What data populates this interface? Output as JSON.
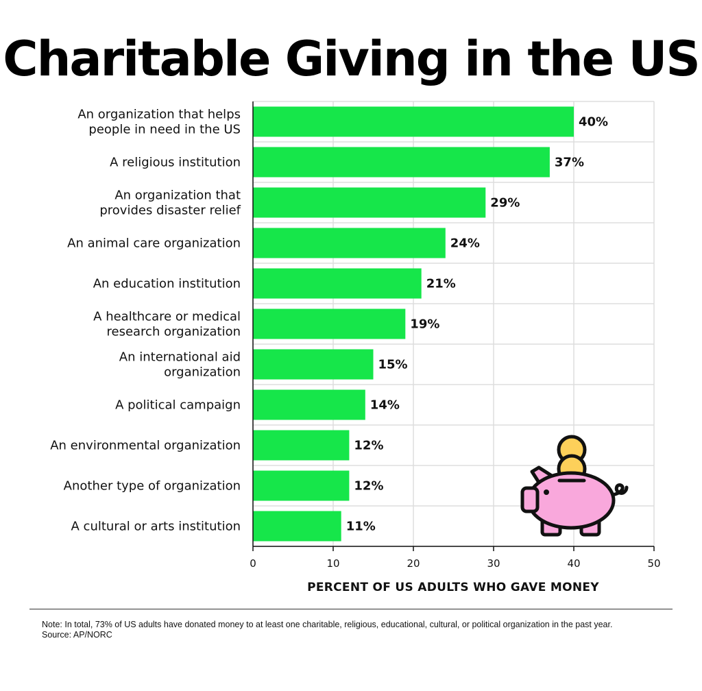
{
  "chart_data": {
    "type": "bar",
    "orientation": "horizontal",
    "title": "Charitable Giving in the US",
    "xlabel": "PERCENT OF US ADULTS WHO GAVE MONEY",
    "ylabel": "",
    "xlim": [
      0,
      50
    ],
    "xticks": [
      "0",
      "10",
      "20",
      "30",
      "40",
      "50"
    ],
    "grid": true,
    "bar_color": "#16e64a",
    "categories": [
      [
        "An organization that helps",
        "people in need in the US"
      ],
      [
        "A religious institution"
      ],
      [
        "An organization that",
        "provides disaster relief"
      ],
      [
        "An animal care organization"
      ],
      [
        "An education institution"
      ],
      [
        "A healthcare or medical",
        "research organization"
      ],
      [
        "An international aid",
        "organization"
      ],
      [
        "A political campaign"
      ],
      [
        "An environmental organization"
      ],
      [
        "Another type of organization"
      ],
      [
        "A cultural or arts institution"
      ]
    ],
    "values": [
      40,
      37,
      29,
      24,
      21,
      19,
      15,
      14,
      12,
      12,
      11
    ],
    "value_labels": [
      "40%",
      "37%",
      "29%",
      "24%",
      "21%",
      "19%",
      "15%",
      "14%",
      "12%",
      "12%",
      "11%"
    ]
  },
  "note": "Note: In total, 73% of US adults have donated money to at least one charitable, religious, educational, cultural, or political organization in the past year.",
  "source": "Source: AP/NORC",
  "illustration": {
    "icon": "piggy-bank-icon",
    "body_color": "#f9a8dc",
    "coin_color": "#fdd05a",
    "outline_color": "#111111"
  }
}
